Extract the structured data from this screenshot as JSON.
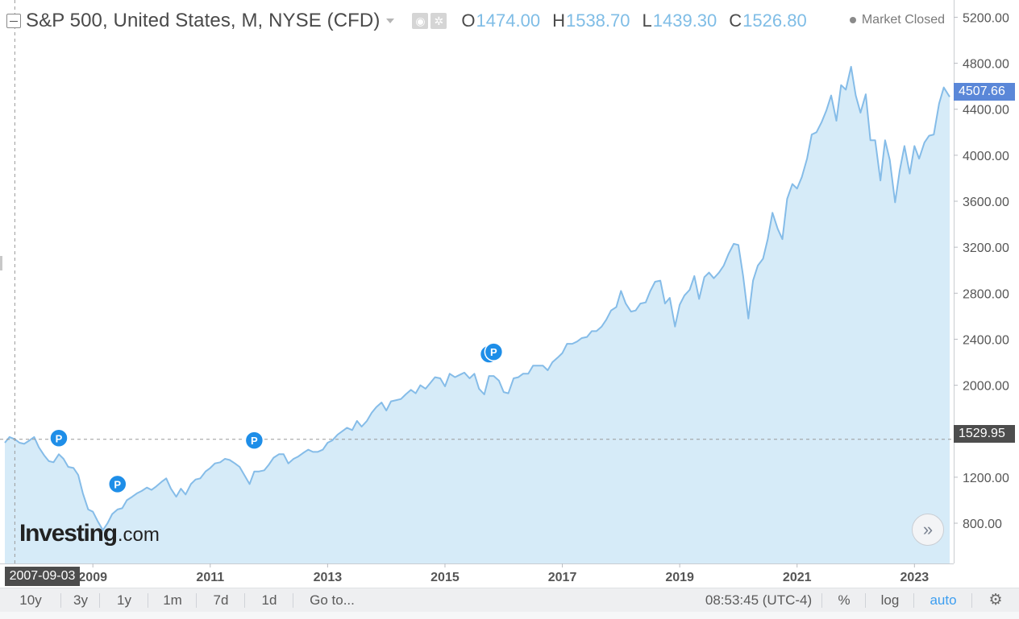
{
  "header": {
    "title": "S&P 500, United States, M, NYSE (CFD)",
    "ohlc": [
      {
        "key": "O",
        "value": "1474.00"
      },
      {
        "key": "H",
        "value": "1538.70"
      },
      {
        "key": "L",
        "value": "1439.30"
      },
      {
        "key": "C",
        "value": "1526.80"
      }
    ],
    "market_status": "Market Closed"
  },
  "price_labels": {
    "last_price": "4507.66",
    "cursor_price": "1529.95",
    "cursor_date": "2007-09-03"
  },
  "logo": {
    "main": "Investing",
    "tld": ".com"
  },
  "nav_button": "»",
  "toolbar": {
    "timeframes": [
      "10y",
      "3y",
      "1y",
      "1m",
      "7d",
      "1d"
    ],
    "goto_label": "Go to...",
    "clock": "08:53:45 (UTC-4)",
    "percent_label": "%",
    "log_label": "log",
    "auto_label": "auto",
    "settings_icon": "gear-icon"
  },
  "colors": {
    "line": "#85bce8",
    "area": "#d6ebf8",
    "marker": "#1e8ee8",
    "last_price_bg": "#5a87d8",
    "cursor_label_bg": "#4d4d4d",
    "ohlc_value": "#7fbde6"
  },
  "chart_data": {
    "type": "area",
    "title": "S&P 500, United States, M, NYSE (CFD)",
    "xlabel": "",
    "ylabel": "",
    "x_range": [
      2007.5,
      2023.6
    ],
    "ylim": [
      450,
      5350
    ],
    "y_ticks": [
      800,
      1200,
      1600,
      2000,
      2400,
      2800,
      3200,
      3600,
      4000,
      4400,
      4800,
      5200
    ],
    "y_tick_labels": [
      "800.00",
      "1200.00",
      "1600.00",
      "2000.00",
      "2400.00",
      "2800.00",
      "3200.00",
      "3600.00",
      "4000.00",
      "4400.00",
      "4800.00",
      "5200.00"
    ],
    "x_ticks": [
      2009,
      2011,
      2013,
      2015,
      2017,
      2019,
      2021,
      2023
    ],
    "x_tick_labels": [
      "2009",
      "2011",
      "2013",
      "2015",
      "2017",
      "2019",
      "2021",
      "2023"
    ],
    "crosshair": {
      "x": 2007.67,
      "y": 1529.95
    },
    "grid": false,
    "series": [
      {
        "points": [
          [
            2007.5,
            1500
          ],
          [
            2007.58,
            1550
          ],
          [
            2007.67,
            1530
          ],
          [
            2007.75,
            1500
          ],
          [
            2007.83,
            1490
          ],
          [
            2007.92,
            1520
          ],
          [
            2008.0,
            1550
          ],
          [
            2008.08,
            1460
          ],
          [
            2008.17,
            1390
          ],
          [
            2008.25,
            1340
          ],
          [
            2008.33,
            1330
          ],
          [
            2008.42,
            1400
          ],
          [
            2008.5,
            1360
          ],
          [
            2008.58,
            1290
          ],
          [
            2008.67,
            1280
          ],
          [
            2008.75,
            1220
          ],
          [
            2008.83,
            1060
          ],
          [
            2008.92,
            920
          ],
          [
            2009.0,
            900
          ],
          [
            2009.08,
            820
          ],
          [
            2009.17,
            740
          ],
          [
            2009.25,
            800
          ],
          [
            2009.33,
            880
          ],
          [
            2009.42,
            920
          ],
          [
            2009.5,
            930
          ],
          [
            2009.58,
            1000
          ],
          [
            2009.67,
            1030
          ],
          [
            2009.75,
            1060
          ],
          [
            2009.83,
            1080
          ],
          [
            2009.92,
            1110
          ],
          [
            2010.0,
            1090
          ],
          [
            2010.08,
            1120
          ],
          [
            2010.17,
            1160
          ],
          [
            2010.25,
            1190
          ],
          [
            2010.33,
            1100
          ],
          [
            2010.42,
            1030
          ],
          [
            2010.5,
            1100
          ],
          [
            2010.58,
            1050
          ],
          [
            2010.67,
            1140
          ],
          [
            2010.75,
            1180
          ],
          [
            2010.83,
            1190
          ],
          [
            2010.92,
            1250
          ],
          [
            2011.0,
            1280
          ],
          [
            2011.08,
            1320
          ],
          [
            2011.17,
            1330
          ],
          [
            2011.25,
            1360
          ],
          [
            2011.33,
            1350
          ],
          [
            2011.42,
            1320
          ],
          [
            2011.5,
            1290
          ],
          [
            2011.58,
            1220
          ],
          [
            2011.67,
            1140
          ],
          [
            2011.75,
            1250
          ],
          [
            2011.83,
            1250
          ],
          [
            2011.92,
            1260
          ],
          [
            2012.0,
            1310
          ],
          [
            2012.08,
            1370
          ],
          [
            2012.17,
            1400
          ],
          [
            2012.25,
            1400
          ],
          [
            2012.33,
            1320
          ],
          [
            2012.42,
            1360
          ],
          [
            2012.5,
            1380
          ],
          [
            2012.58,
            1410
          ],
          [
            2012.67,
            1440
          ],
          [
            2012.75,
            1420
          ],
          [
            2012.83,
            1420
          ],
          [
            2012.92,
            1440
          ],
          [
            2013.0,
            1500
          ],
          [
            2013.08,
            1520
          ],
          [
            2013.17,
            1570
          ],
          [
            2013.25,
            1600
          ],
          [
            2013.33,
            1630
          ],
          [
            2013.42,
            1610
          ],
          [
            2013.5,
            1690
          ],
          [
            2013.58,
            1640
          ],
          [
            2013.67,
            1690
          ],
          [
            2013.75,
            1760
          ],
          [
            2013.83,
            1810
          ],
          [
            2013.92,
            1850
          ],
          [
            2014.0,
            1780
          ],
          [
            2014.08,
            1860
          ],
          [
            2014.17,
            1870
          ],
          [
            2014.25,
            1880
          ],
          [
            2014.33,
            1920
          ],
          [
            2014.42,
            1960
          ],
          [
            2014.5,
            1930
          ],
          [
            2014.58,
            2000
          ],
          [
            2014.67,
            1970
          ],
          [
            2014.75,
            2020
          ],
          [
            2014.83,
            2070
          ],
          [
            2014.92,
            2060
          ],
          [
            2015.0,
            1990
          ],
          [
            2015.08,
            2100
          ],
          [
            2015.17,
            2070
          ],
          [
            2015.25,
            2090
          ],
          [
            2015.33,
            2110
          ],
          [
            2015.42,
            2060
          ],
          [
            2015.5,
            2100
          ],
          [
            2015.58,
            1970
          ],
          [
            2015.67,
            1920
          ],
          [
            2015.75,
            2080
          ],
          [
            2015.83,
            2080
          ],
          [
            2015.92,
            2040
          ],
          [
            2016.0,
            1940
          ],
          [
            2016.08,
            1930
          ],
          [
            2016.17,
            2060
          ],
          [
            2016.25,
            2070
          ],
          [
            2016.33,
            2100
          ],
          [
            2016.42,
            2100
          ],
          [
            2016.5,
            2170
          ],
          [
            2016.58,
            2170
          ],
          [
            2016.67,
            2170
          ],
          [
            2016.75,
            2130
          ],
          [
            2016.83,
            2200
          ],
          [
            2016.92,
            2240
          ],
          [
            2017.0,
            2280
          ],
          [
            2017.08,
            2360
          ],
          [
            2017.17,
            2360
          ],
          [
            2017.25,
            2380
          ],
          [
            2017.33,
            2410
          ],
          [
            2017.42,
            2420
          ],
          [
            2017.5,
            2470
          ],
          [
            2017.58,
            2470
          ],
          [
            2017.67,
            2510
          ],
          [
            2017.75,
            2570
          ],
          [
            2017.83,
            2650
          ],
          [
            2017.92,
            2680
          ],
          [
            2018.0,
            2820
          ],
          [
            2018.08,
            2710
          ],
          [
            2018.17,
            2640
          ],
          [
            2018.25,
            2650
          ],
          [
            2018.33,
            2710
          ],
          [
            2018.42,
            2720
          ],
          [
            2018.5,
            2820
          ],
          [
            2018.58,
            2900
          ],
          [
            2018.67,
            2910
          ],
          [
            2018.75,
            2710
          ],
          [
            2018.83,
            2760
          ],
          [
            2018.92,
            2510
          ],
          [
            2019.0,
            2700
          ],
          [
            2019.08,
            2780
          ],
          [
            2019.17,
            2830
          ],
          [
            2019.25,
            2950
          ],
          [
            2019.33,
            2750
          ],
          [
            2019.42,
            2940
          ],
          [
            2019.5,
            2980
          ],
          [
            2019.58,
            2930
          ],
          [
            2019.67,
            2980
          ],
          [
            2019.75,
            3040
          ],
          [
            2019.83,
            3140
          ],
          [
            2019.92,
            3230
          ],
          [
            2020.0,
            3220
          ],
          [
            2020.08,
            2950
          ],
          [
            2020.17,
            2580
          ],
          [
            2020.25,
            2910
          ],
          [
            2020.33,
            3040
          ],
          [
            2020.42,
            3100
          ],
          [
            2020.5,
            3270
          ],
          [
            2020.58,
            3500
          ],
          [
            2020.67,
            3360
          ],
          [
            2020.75,
            3270
          ],
          [
            2020.83,
            3620
          ],
          [
            2020.92,
            3750
          ],
          [
            2021.0,
            3710
          ],
          [
            2021.08,
            3810
          ],
          [
            2021.17,
            3970
          ],
          [
            2021.25,
            4180
          ],
          [
            2021.33,
            4200
          ],
          [
            2021.42,
            4290
          ],
          [
            2021.5,
            4390
          ],
          [
            2021.58,
            4520
          ],
          [
            2021.67,
            4300
          ],
          [
            2021.75,
            4610
          ],
          [
            2021.83,
            4570
          ],
          [
            2021.92,
            4770
          ],
          [
            2022.0,
            4520
          ],
          [
            2022.08,
            4370
          ],
          [
            2022.17,
            4530
          ],
          [
            2022.25,
            4130
          ],
          [
            2022.33,
            4130
          ],
          [
            2022.42,
            3780
          ],
          [
            2022.5,
            4130
          ],
          [
            2022.58,
            3960
          ],
          [
            2022.67,
            3590
          ],
          [
            2022.75,
            3870
          ],
          [
            2022.83,
            4080
          ],
          [
            2022.92,
            3840
          ],
          [
            2023.0,
            4080
          ],
          [
            2023.08,
            3970
          ],
          [
            2023.17,
            4110
          ],
          [
            2023.25,
            4170
          ],
          [
            2023.33,
            4180
          ],
          [
            2023.42,
            4450
          ],
          [
            2023.5,
            4590
          ],
          [
            2023.6,
            4508
          ]
        ]
      }
    ],
    "annotations": [
      {
        "label": "P",
        "x": 2008.42,
        "y": 1540
      },
      {
        "label": "P",
        "x": 2009.42,
        "y": 1140
      },
      {
        "label": "P",
        "x": 2011.75,
        "y": 1520
      },
      {
        "label": "P",
        "x": 2015.75,
        "y": 2270
      },
      {
        "label": "P",
        "x": 2015.83,
        "y": 2290
      }
    ]
  }
}
